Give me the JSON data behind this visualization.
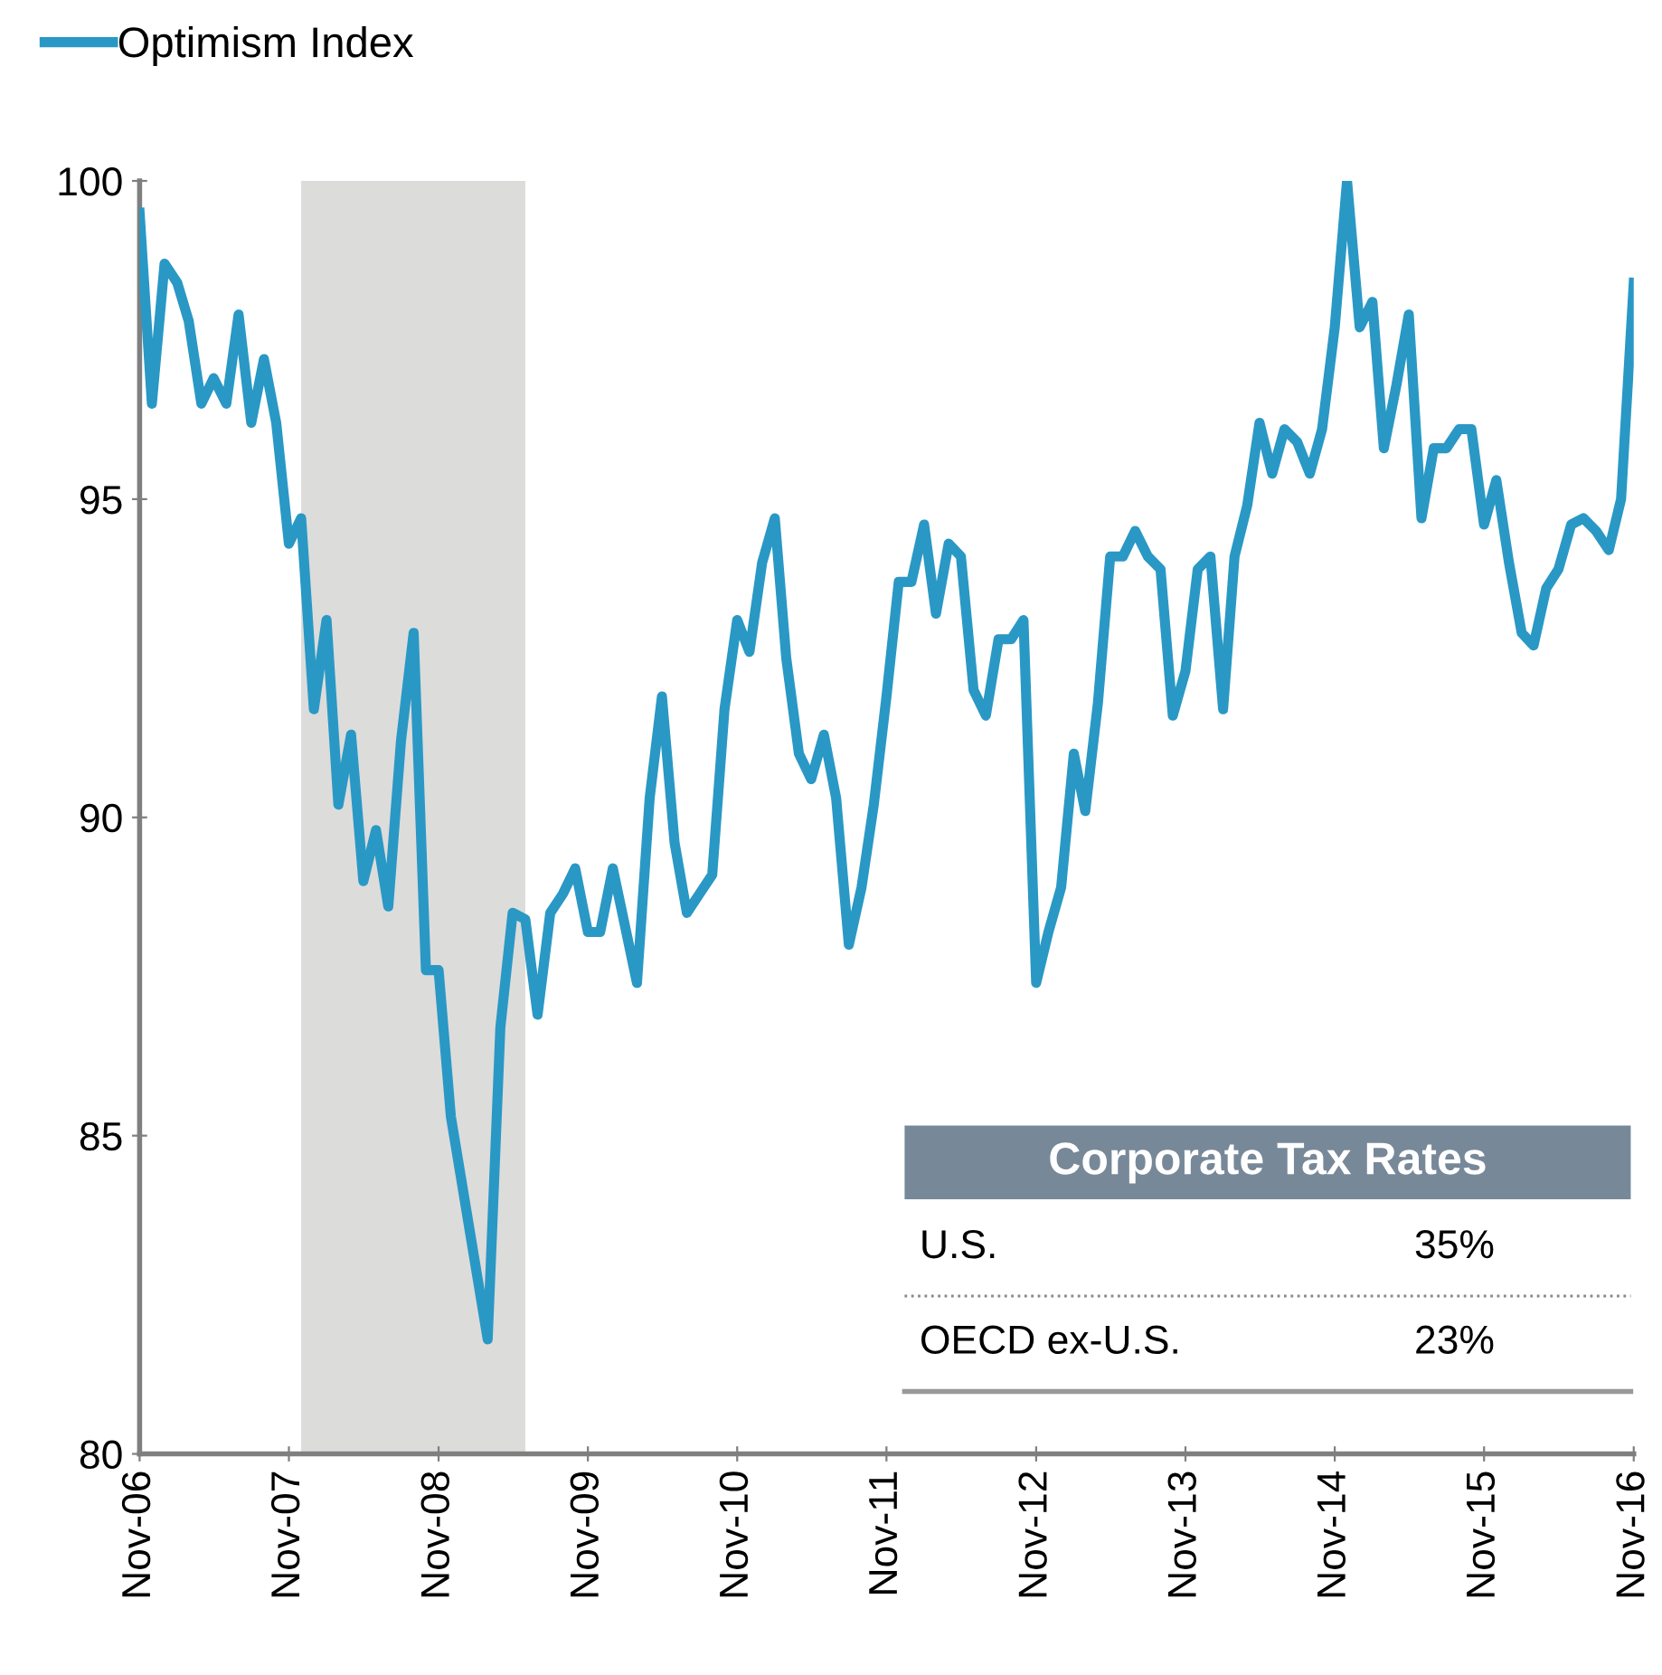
{
  "chart_data": {
    "type": "line",
    "series": [
      {
        "name": "Optimism Index",
        "color": "#2a98c5",
        "x": [
          "2006-11",
          "2006-12",
          "2007-01",
          "2007-02",
          "2007-03",
          "2007-04",
          "2007-05",
          "2007-06",
          "2007-07",
          "2007-08",
          "2007-09",
          "2007-10",
          "2007-11",
          "2007-12",
          "2008-01",
          "2008-02",
          "2008-03",
          "2008-04",
          "2008-05",
          "2008-06",
          "2008-07",
          "2008-08",
          "2008-09",
          "2008-10",
          "2008-11",
          "2008-12",
          "2009-03",
          "2009-04",
          "2009-05",
          "2009-06",
          "2009-07",
          "2009-08",
          "2009-09",
          "2009-10",
          "2009-11",
          "2009-12",
          "2010-01",
          "2010-03",
          "2010-04",
          "2010-05",
          "2010-06",
          "2010-07",
          "2010-08",
          "2010-09",
          "2010-10",
          "2010-11",
          "2010-12",
          "2011-01",
          "2011-02",
          "2011-03",
          "2011-04",
          "2011-05",
          "2011-06",
          "2011-07",
          "2011-08",
          "2011-09",
          "2011-10",
          "2011-11",
          "2011-12",
          "2012-01",
          "2012-02",
          "2012-03",
          "2012-04",
          "2012-05",
          "2012-06",
          "2012-07",
          "2012-08",
          "2012-09",
          "2012-10",
          "2012-11",
          "2012-12",
          "2013-01",
          "2013-02",
          "2013-03",
          "2013-04",
          "2013-05",
          "2013-06",
          "2013-07",
          "2013-08",
          "2013-09",
          "2013-10",
          "2013-11",
          "2013-12",
          "2014-01",
          "2014-02",
          "2014-03",
          "2014-04",
          "2014-05",
          "2014-06",
          "2014-07",
          "2014-08",
          "2014-09",
          "2014-10",
          "2014-11",
          "2014-12",
          "2015-01",
          "2015-02",
          "2015-03",
          "2015-04",
          "2015-05",
          "2015-06",
          "2015-07",
          "2015-08",
          "2015-09",
          "2015-10",
          "2015-11",
          "2015-12",
          "2016-01",
          "2016-02",
          "2016-03",
          "2016-04",
          "2016-05",
          "2016-06",
          "2016-07",
          "2016-08",
          "2016-09",
          "2016-10",
          "2016-11"
        ],
        "values": [
          99.5,
          96.5,
          98.7,
          98.4,
          97.8,
          96.5,
          96.9,
          96.5,
          97.9,
          96.2,
          97.2,
          96.2,
          94.3,
          94.7,
          91.7,
          93.1,
          90.2,
          91.3,
          89.0,
          89.8,
          88.6,
          91.2,
          92.9,
          87.6,
          87.6,
          85.3,
          81.8,
          86.7,
          88.5,
          88.4,
          86.9,
          88.5,
          88.8,
          89.2,
          88.2,
          88.2,
          89.2,
          87.4,
          90.3,
          91.9,
          89.6,
          88.5,
          88.8,
          89.1,
          91.7,
          93.1,
          92.6,
          94.0,
          94.7,
          92.5,
          91.0,
          90.6,
          91.3,
          90.3,
          88.0,
          88.9,
          90.2,
          91.9,
          93.7,
          93.7,
          94.6,
          93.2,
          94.3,
          94.1,
          92.0,
          91.6,
          92.8,
          92.8,
          93.1,
          87.4,
          88.2,
          88.9,
          91.0,
          90.1,
          91.8,
          94.1,
          94.1,
          94.5,
          94.1,
          93.9,
          91.6,
          92.3,
          93.9,
          94.1,
          91.7,
          94.1,
          94.9,
          96.2,
          95.4,
          96.1,
          95.9,
          95.4,
          96.1,
          97.7,
          100.0,
          97.7,
          98.1,
          95.8,
          96.8,
          97.9,
          94.7,
          95.8,
          95.8,
          96.1,
          96.1,
          94.6,
          95.3,
          94.0,
          92.9,
          92.7,
          93.6,
          93.9,
          94.6,
          94.7,
          94.5,
          94.2,
          95.0,
          98.4
        ]
      }
    ],
    "xlim": [
      "2006-11",
      "2016-11"
    ],
    "xticks": [
      {
        "value": "2006-11",
        "label": "Nov-06"
      },
      {
        "value": "2007-11",
        "label": "Nov-07"
      },
      {
        "value": "2008-11",
        "label": "Nov-08"
      },
      {
        "value": "2009-11",
        "label": "Nov-09"
      },
      {
        "value": "2010-11",
        "label": "Nov-10"
      },
      {
        "value": "2011-11",
        "label": "Nov-11"
      },
      {
        "value": "2012-11",
        "label": "Nov-12"
      },
      {
        "value": "2013-11",
        "label": "Nov-13"
      },
      {
        "value": "2014-11",
        "label": "Nov-14"
      },
      {
        "value": "2015-11",
        "label": "Nov-15"
      },
      {
        "value": "2016-11",
        "label": "Nov-16"
      }
    ],
    "ylim": [
      80,
      100
    ],
    "yticks": [
      80,
      85,
      90,
      95,
      100
    ],
    "bands": [
      {
        "axis": "x",
        "from": "2007-12",
        "to": "2009-06",
        "color": "#dcdcdb"
      }
    ],
    "legend": "top left",
    "grid": false,
    "line_style": "solid",
    "marker": "none",
    "annotations": [
      "Corporate Tax Rates",
      "U.S.",
      "35%",
      "OECD ex-U.S.",
      "23%"
    ]
  }
}
